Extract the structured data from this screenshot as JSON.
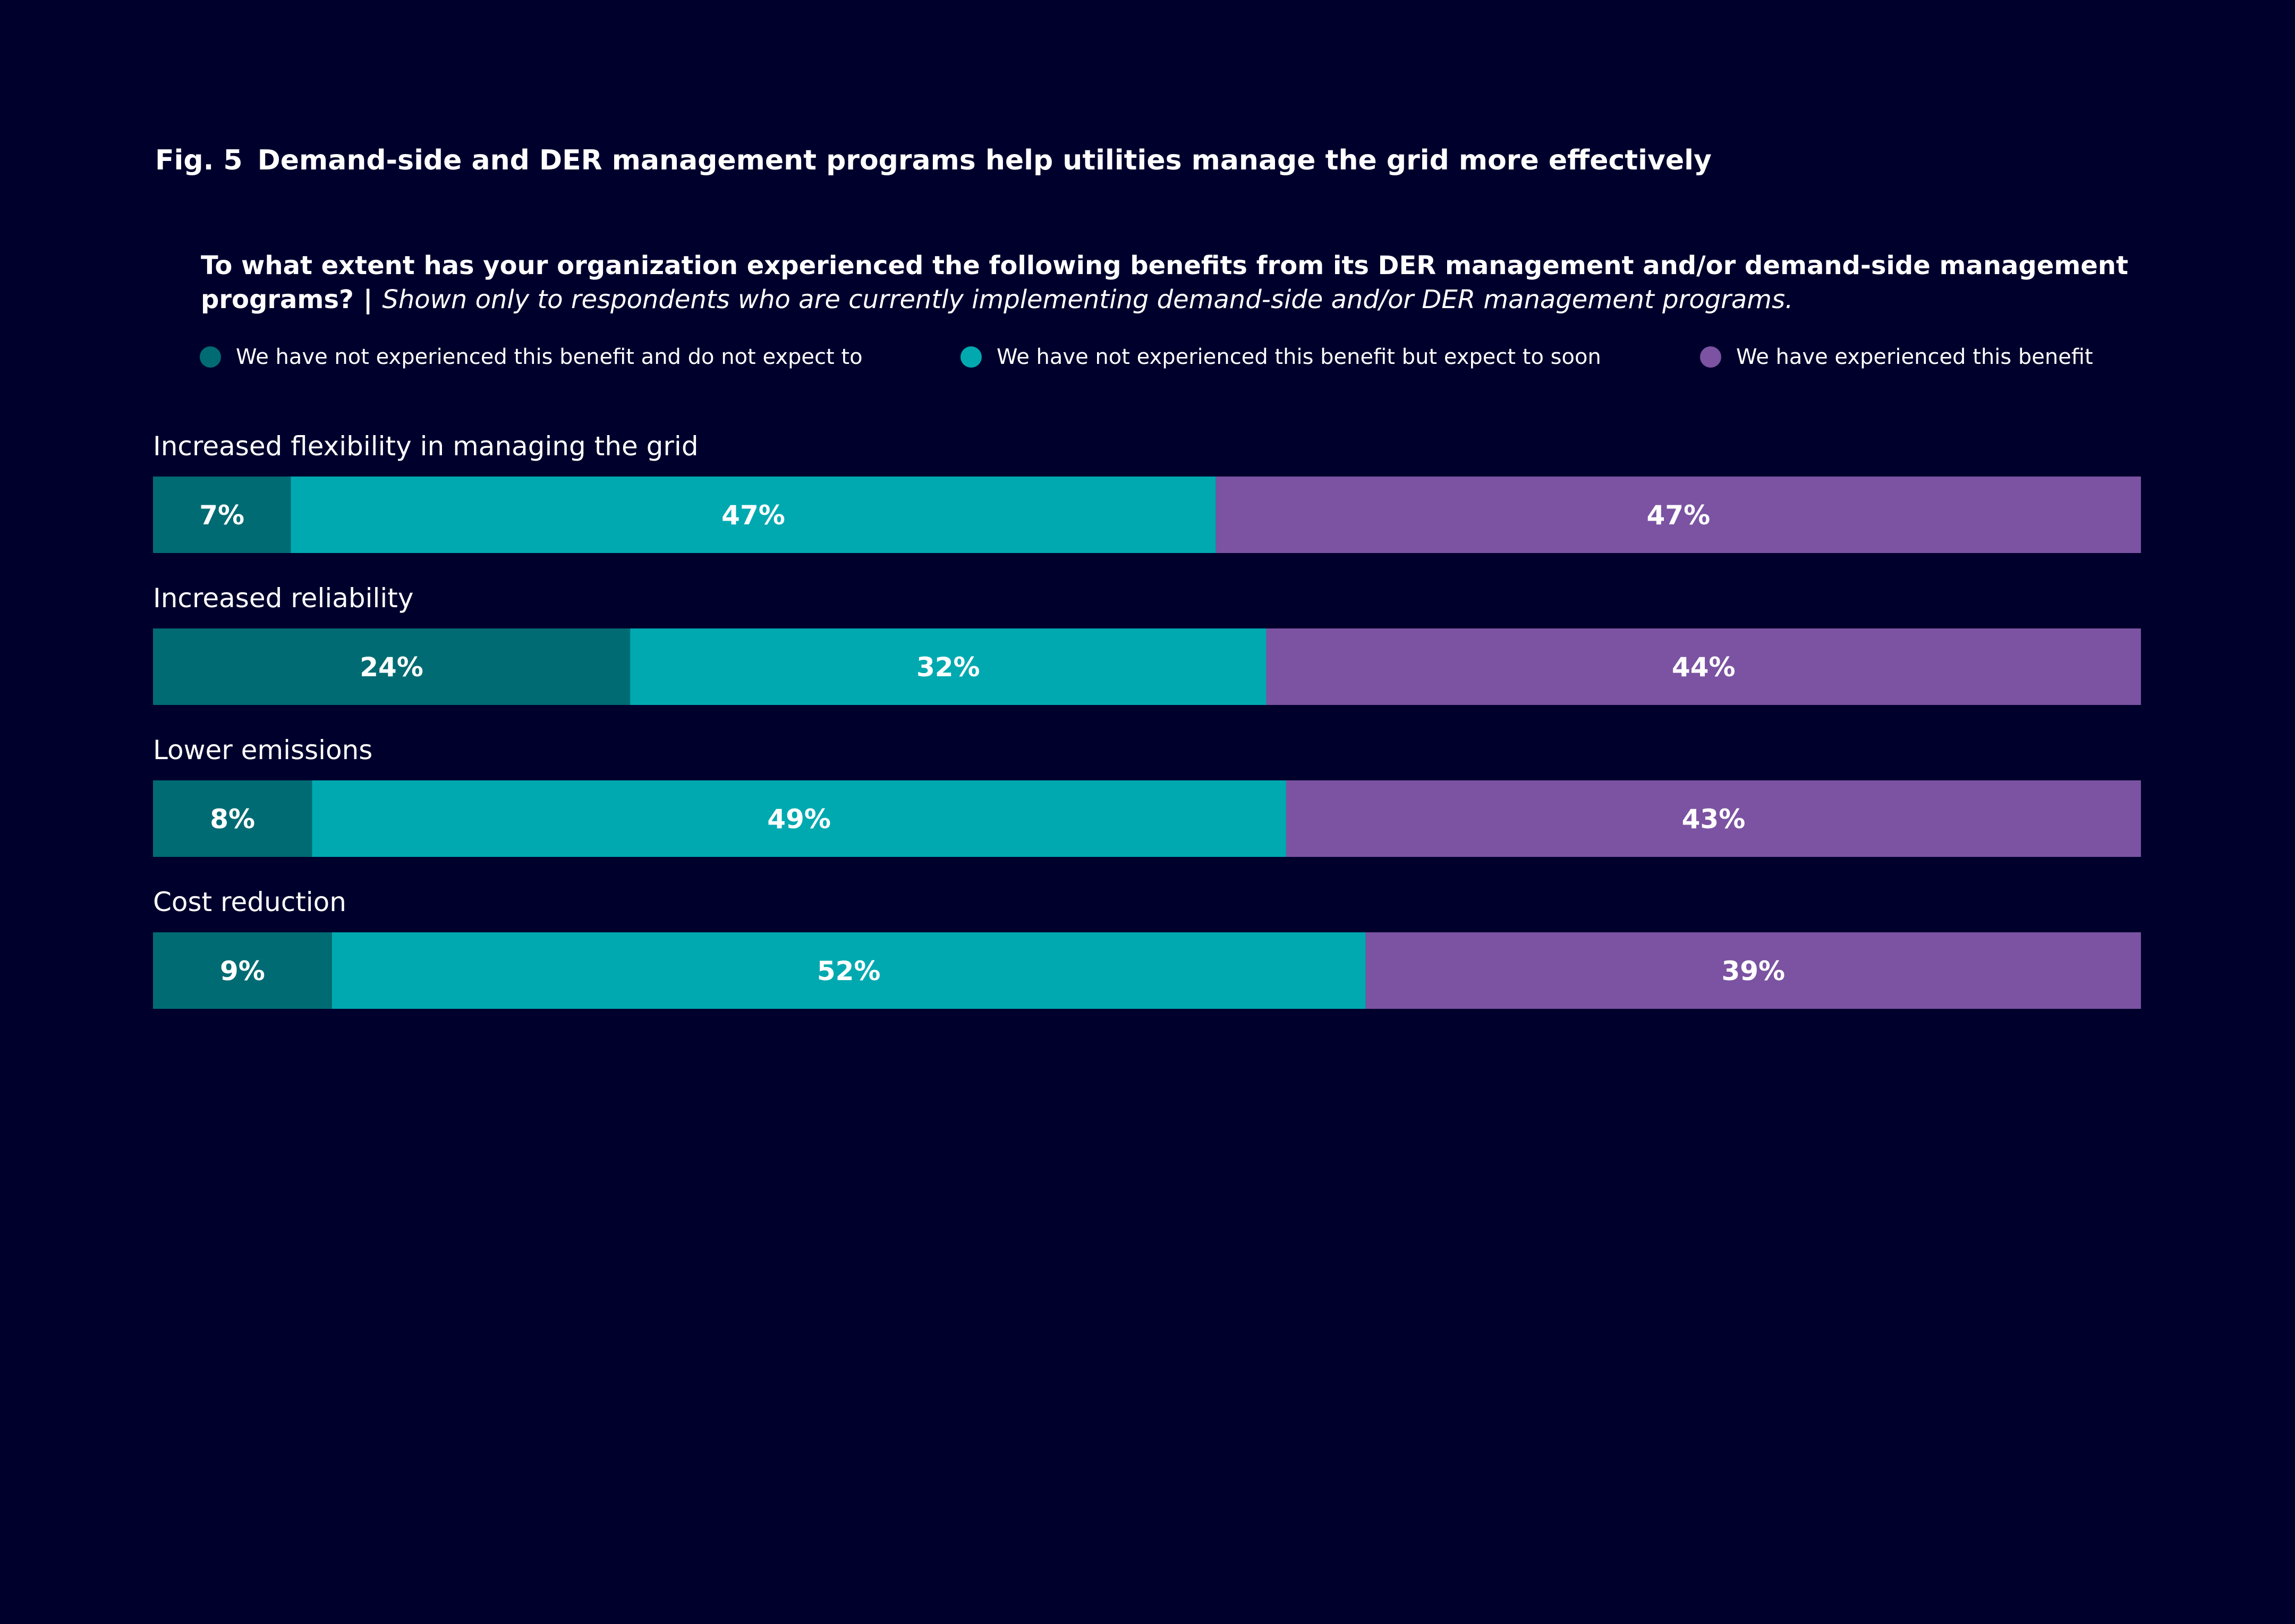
{
  "figure": {
    "number": "Fig. 5",
    "title": "Demand-side and DER management programs help utilities manage the grid more effectively"
  },
  "question": {
    "text": "To what extent has your organization experienced the following benefits from its DER management and/or demand-side management programs?",
    "separator": "|",
    "note": "Shown only to respondents who are currently implementing demand-side and/or DER management programs."
  },
  "legend": [
    {
      "label": "We have not experienced this benefit and do not expect to",
      "color": "#006b73"
    },
    {
      "label": "We have not experienced this benefit but expect to soon",
      "color": "#00a9b0"
    },
    {
      "label": "We have experienced this benefit",
      "color": "#7b53a2"
    }
  ],
  "chart_data": {
    "type": "bar",
    "orientation": "horizontal",
    "stacked": true,
    "categories": [
      "Increased flexibility in managing the grid",
      "Increased reliability",
      "Lower emissions",
      "Cost reduction"
    ],
    "series": [
      {
        "name": "We have not experienced this benefit and do not expect to",
        "values": [
          7,
          24,
          8,
          9
        ],
        "labels": [
          "7%",
          "24%",
          "8%",
          "9%"
        ],
        "color": "#006b73"
      },
      {
        "name": "We have not experienced this benefit but expect to soon",
        "values": [
          47,
          32,
          49,
          52
        ],
        "labels": [
          "47%",
          "32%",
          "49%",
          "52%"
        ],
        "color": "#00a9b0"
      },
      {
        "name": "We have experienced this benefit",
        "values": [
          47,
          44,
          43,
          39
        ],
        "labels": [
          "47%",
          "44%",
          "43%",
          "39%"
        ],
        "color": "#7b53a2"
      }
    ],
    "legend_position": "top",
    "grid": false
  }
}
